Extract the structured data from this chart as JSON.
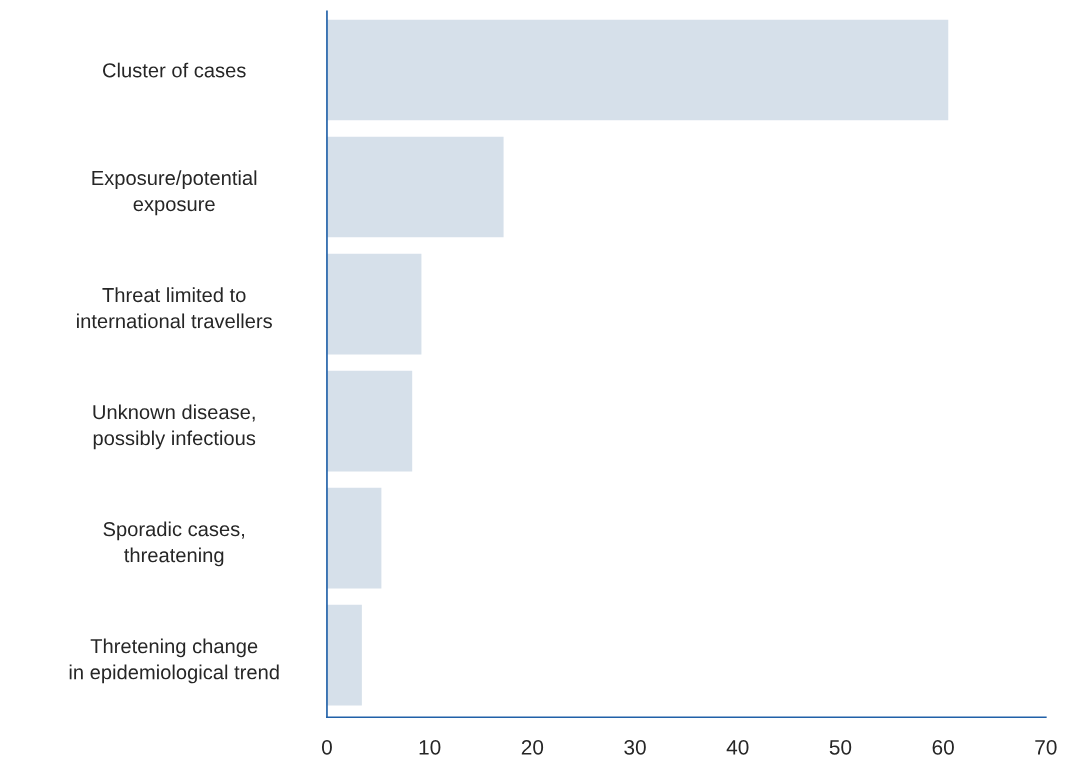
{
  "chart_data": {
    "type": "bar",
    "orientation": "horizontal",
    "categories": [
      "Cluster of cases",
      "Exposure/potential\nexposure",
      "Threat limited to\ninternational travellers",
      "Unknown disease,\npossibly infectious",
      "Sporadic cases,\nthreatening",
      "Thretening change\nin epidemiological trend"
    ],
    "values": [
      60.5,
      17.2,
      9.2,
      8.3,
      5.3,
      3.4
    ],
    "color": "#d6e0ea",
    "xlim": [
      0,
      70
    ],
    "xticks": [
      0,
      10,
      20,
      30,
      40,
      50,
      60,
      70
    ],
    "grid": false,
    "legend": false
  }
}
